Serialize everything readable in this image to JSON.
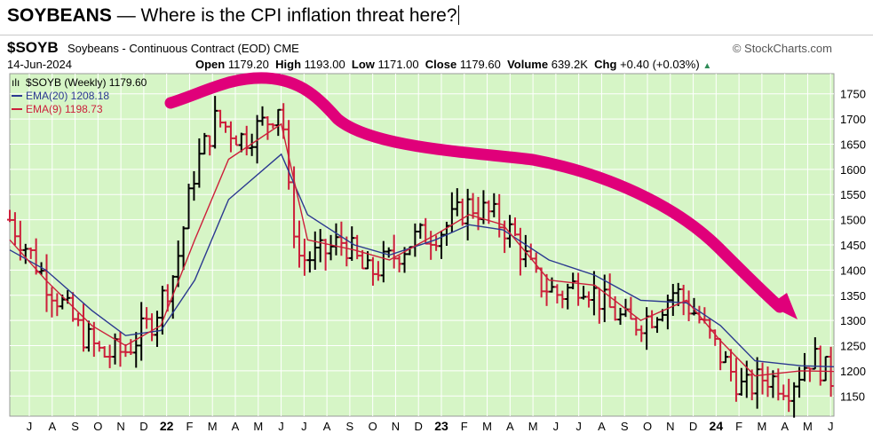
{
  "header": {
    "title_bold": "SOYBEANS",
    "title_rest": " — Where is the CPI inflation threat here?"
  },
  "info": {
    "symbol": "$SOYB",
    "description": "Soybeans - Continuous Contract (EOD)",
    "exchange": "CME",
    "brand": "© StockCharts.com",
    "date": "14-Jun-2024",
    "open_label": "Open",
    "open": "1179.20",
    "high_label": "High",
    "high": "1193.00",
    "low_label": "Low",
    "low": "1171.00",
    "close_label": "Close",
    "close": "1179.60",
    "volume_label": "Volume",
    "volume": "639.2K",
    "chg_label": "Chg",
    "chg": "+0.40 (+0.03%)"
  },
  "legend": [
    {
      "label": "$SOYB (Weekly) 1179.60",
      "color": "#000000"
    },
    {
      "label": "EMA(20) 1208.18",
      "color": "#2b3990"
    },
    {
      "label": "EMA(9) 1198.73",
      "color": "#cc1f3a"
    }
  ],
  "colors": {
    "plot_bg": "#d6f5c6",
    "grid": "#ffffff",
    "up_bar": "#000000",
    "down_bar": "#cc1f3a",
    "ema20": "#2b3990",
    "ema9": "#cc1f3a",
    "annotation": "#e0007a"
  },
  "chart_data": {
    "type": "ohlc-bar",
    "title": "$SOYB (Weekly)",
    "ylim": [
      1110,
      1790
    ],
    "y_ticks": [
      1150,
      1200,
      1250,
      1300,
      1350,
      1400,
      1450,
      1500,
      1550,
      1600,
      1650,
      1700,
      1750
    ],
    "x_tick_labels": [
      "J",
      "A",
      "S",
      "O",
      "N",
      "D",
      "22",
      "F",
      "M",
      "A",
      "M",
      "J",
      "J",
      "A",
      "S",
      "O",
      "N",
      "D",
      "23",
      "F",
      "M",
      "A",
      "M",
      "J",
      "J",
      "A",
      "S",
      "O",
      "N",
      "D",
      "24",
      "F",
      "M",
      "A",
      "M",
      "J"
    ],
    "x_range": [
      "2021-06-14",
      "2024-06-14"
    ],
    "grid": true,
    "series": [
      {
        "name": "$SOYB (Weekly)",
        "points": [
          [
            "2021-06-14",
            1500
          ],
          [
            "2021-08-01",
            1380
          ],
          [
            "2021-09-15",
            1280
          ],
          [
            "2021-10-15",
            1230
          ],
          [
            "2021-11-15",
            1240
          ],
          [
            "2021-12-20",
            1300
          ],
          [
            "2022-01-20",
            1400
          ],
          [
            "2022-02-15",
            1600
          ],
          [
            "2022-03-15",
            1700
          ],
          [
            "2022-04-20",
            1660
          ],
          [
            "2022-05-25",
            1700
          ],
          [
            "2022-06-10",
            1740
          ],
          [
            "2022-06-20",
            1550
          ],
          [
            "2022-07-05",
            1420
          ],
          [
            "2022-08-01",
            1430
          ],
          [
            "2022-09-01",
            1460
          ],
          [
            "2022-10-01",
            1390
          ],
          [
            "2022-11-01",
            1420
          ],
          [
            "2022-12-01",
            1460
          ],
          [
            "2023-01-10",
            1480
          ],
          [
            "2023-02-15",
            1530
          ],
          [
            "2023-03-15",
            1510
          ],
          [
            "2023-04-15",
            1470
          ],
          [
            "2023-05-15",
            1380
          ],
          [
            "2023-06-15",
            1350
          ],
          [
            "2023-07-15",
            1380
          ],
          [
            "2023-08-15",
            1330
          ],
          [
            "2023-09-15",
            1290
          ],
          [
            "2023-10-15",
            1310
          ],
          [
            "2023-11-15",
            1360
          ],
          [
            "2023-12-15",
            1310
          ],
          [
            "2024-01-15",
            1230
          ],
          [
            "2024-02-15",
            1160
          ],
          [
            "2024-03-15",
            1190
          ],
          [
            "2024-04-15",
            1170
          ],
          [
            "2024-05-15",
            1230
          ],
          [
            "2024-06-14",
            1179.6
          ]
        ]
      },
      {
        "name": "EMA(20)",
        "points": [
          [
            "2021-06-14",
            1440
          ],
          [
            "2021-08-01",
            1400
          ],
          [
            "2021-10-01",
            1320
          ],
          [
            "2021-11-15",
            1270
          ],
          [
            "2022-01-01",
            1280
          ],
          [
            "2022-02-15",
            1380
          ],
          [
            "2022-04-01",
            1540
          ],
          [
            "2022-06-10",
            1630
          ],
          [
            "2022-07-15",
            1510
          ],
          [
            "2022-09-15",
            1450
          ],
          [
            "2022-11-01",
            1430
          ],
          [
            "2023-01-01",
            1460
          ],
          [
            "2023-02-15",
            1490
          ],
          [
            "2023-04-01",
            1480
          ],
          [
            "2023-06-01",
            1420
          ],
          [
            "2023-08-01",
            1390
          ],
          [
            "2023-10-01",
            1340
          ],
          [
            "2023-12-01",
            1335
          ],
          [
            "2024-01-15",
            1290
          ],
          [
            "2024-03-01",
            1220
          ],
          [
            "2024-05-01",
            1210
          ],
          [
            "2024-06-14",
            1208.18
          ]
        ]
      },
      {
        "name": "EMA(9)",
        "points": [
          [
            "2021-06-14",
            1460
          ],
          [
            "2021-08-01",
            1380
          ],
          [
            "2021-10-01",
            1290
          ],
          [
            "2021-11-15",
            1250
          ],
          [
            "2022-01-01",
            1290
          ],
          [
            "2022-02-15",
            1460
          ],
          [
            "2022-04-01",
            1620
          ],
          [
            "2022-06-10",
            1690
          ],
          [
            "2022-07-15",
            1460
          ],
          [
            "2022-09-15",
            1440
          ],
          [
            "2022-11-01",
            1420
          ],
          [
            "2023-01-01",
            1470
          ],
          [
            "2023-02-15",
            1510
          ],
          [
            "2023-04-01",
            1490
          ],
          [
            "2023-06-01",
            1380
          ],
          [
            "2023-08-01",
            1370
          ],
          [
            "2023-10-01",
            1300
          ],
          [
            "2023-12-01",
            1340
          ],
          [
            "2024-01-15",
            1260
          ],
          [
            "2024-03-01",
            1190
          ],
          [
            "2024-05-01",
            1200
          ],
          [
            "2024-06-14",
            1198.73
          ]
        ]
      }
    ],
    "annotation": "downward arrow drawn from mid-2022 peak toward June 2024"
  }
}
